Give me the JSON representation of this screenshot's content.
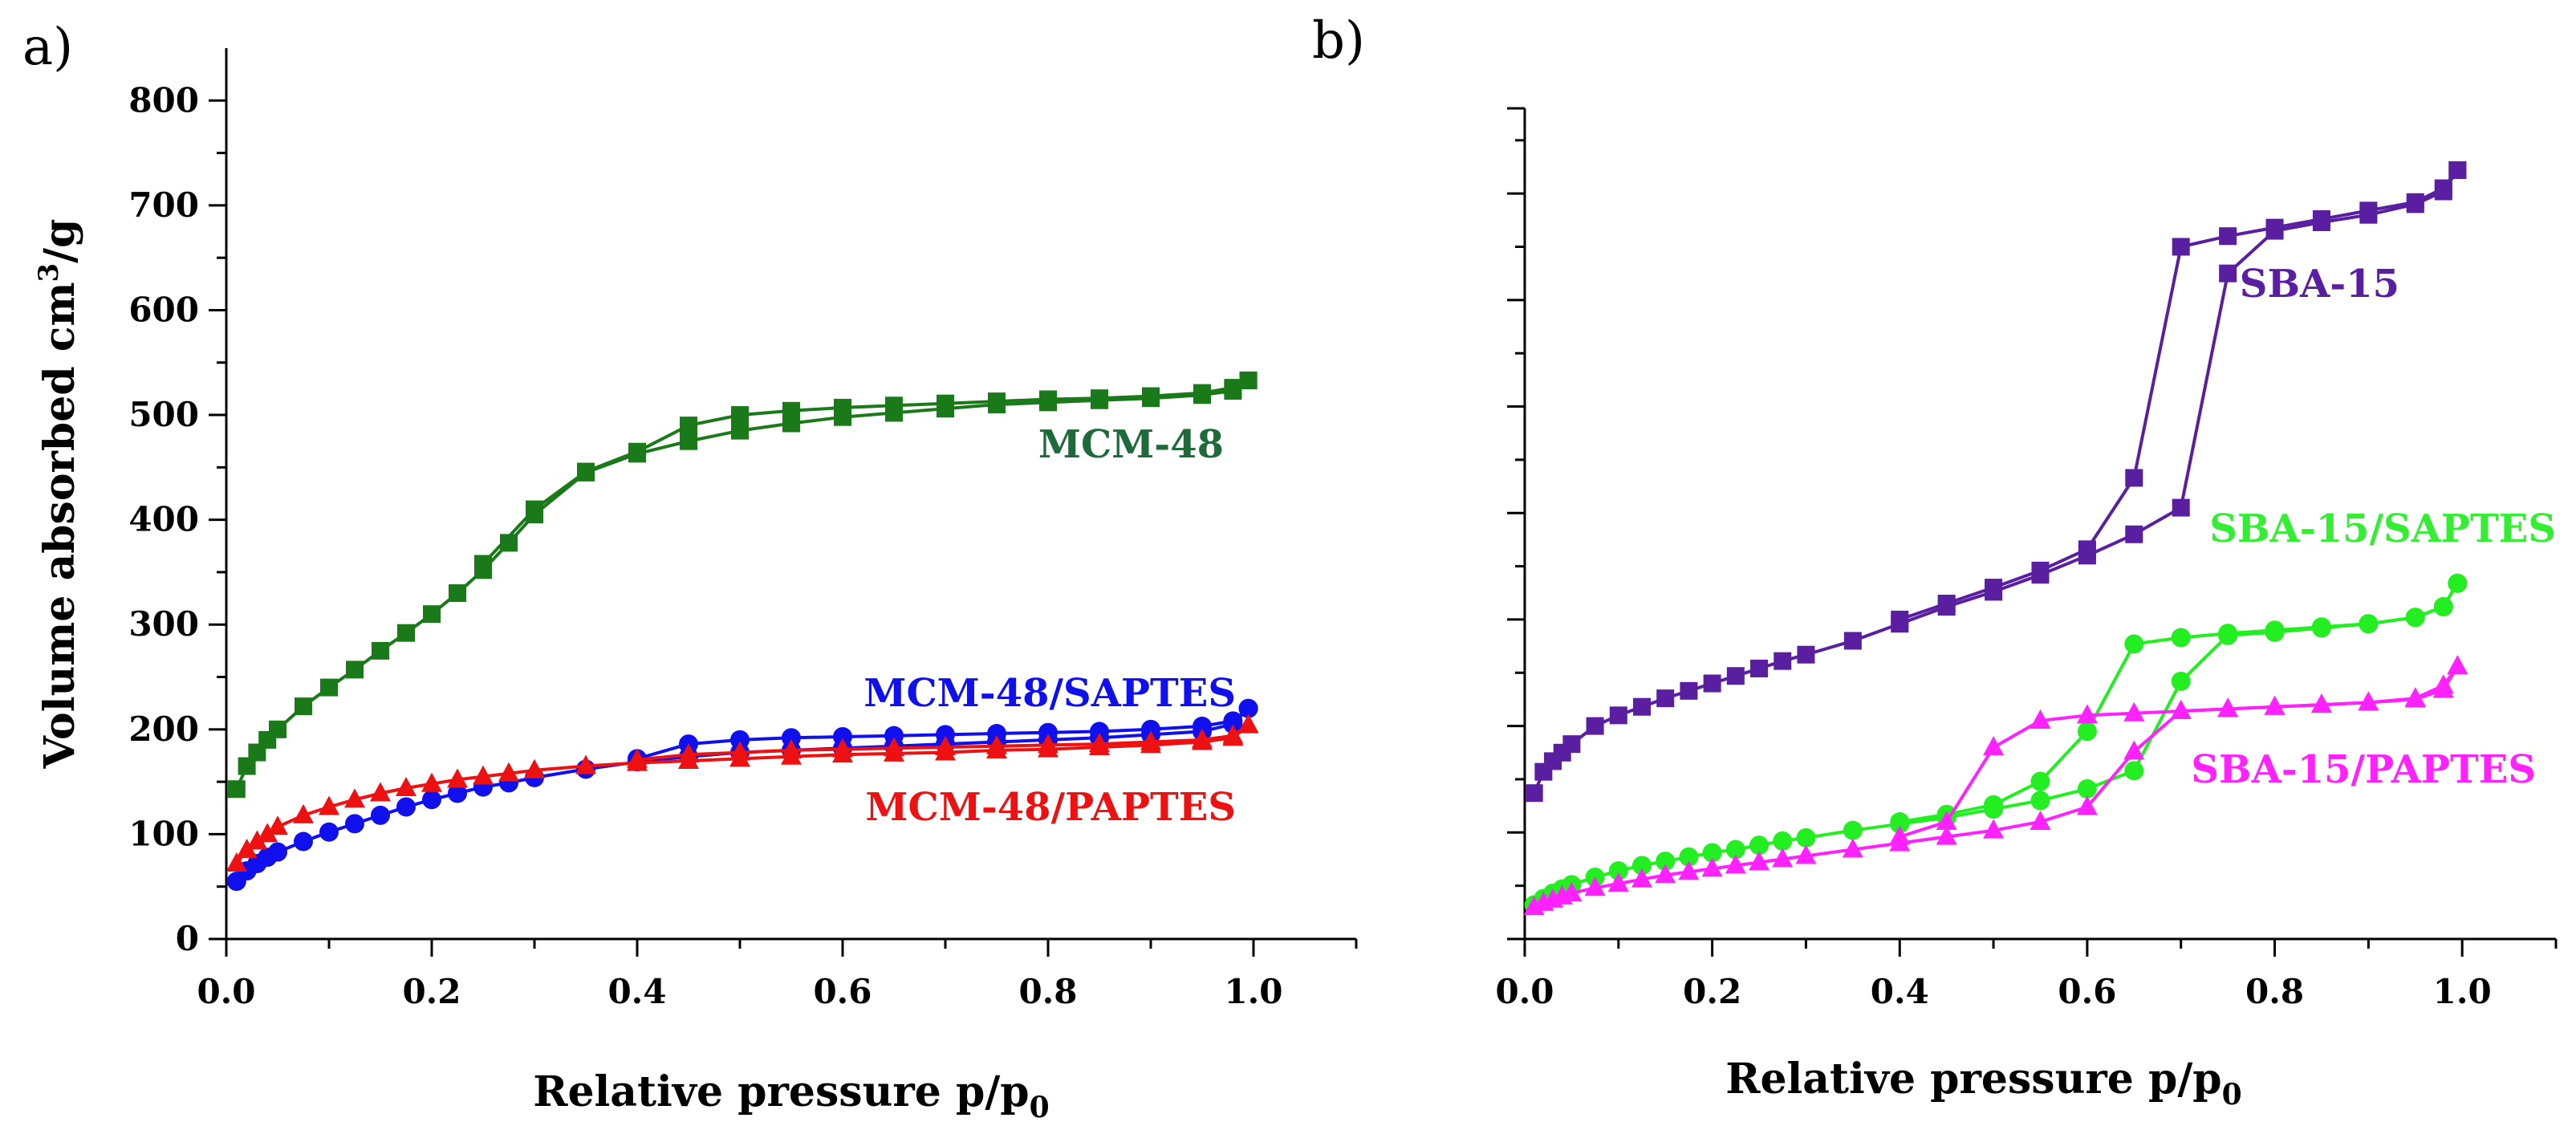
{
  "chart_data": [
    {
      "type": "line",
      "panel_label": "a)",
      "xlabel": "Relative pressure p/p",
      "xlabel_sub": "0",
      "ylabel": "Volume absorbed cm",
      "ylabel_sup": "3",
      "ylabel_suffix": "/g",
      "xlim": [
        0,
        1.1
      ],
      "ylim": [
        0,
        850
      ],
      "x_ticks": [
        "0.0",
        "0.2",
        "0.4",
        "0.6",
        "0.8",
        "1.0"
      ],
      "y_ticks": [
        "0",
        "100",
        "200",
        "300",
        "400",
        "500",
        "600",
        "700",
        "800"
      ],
      "series": [
        {
          "name": "MCM-48",
          "color": "#1a7a1a",
          "label_color": "#1d6b3a",
          "marker": "square",
          "adsorption": {
            "x": [
              0.01,
              0.02,
              0.03,
              0.04,
              0.05,
              0.075,
              0.1,
              0.125,
              0.15,
              0.175,
              0.2,
              0.225,
              0.25,
              0.275,
              0.3,
              0.35,
              0.4,
              0.45,
              0.5,
              0.55,
              0.6,
              0.65,
              0.7,
              0.75,
              0.8,
              0.85,
              0.9,
              0.95,
              0.98,
              0.995
            ],
            "y": [
              143,
              165,
              178,
              190,
              200,
              222,
              240,
              257,
              275,
              292,
              310,
              330,
              352,
              378,
              405,
              445,
              463,
              475,
              485,
              492,
              498,
              502,
              506,
              510,
              512,
              514,
              516,
              519,
              523,
              533
            ]
          },
          "desorption": {
            "x": [
              0.995,
              0.98,
              0.95,
              0.9,
              0.85,
              0.8,
              0.75,
              0.7,
              0.65,
              0.6,
              0.55,
              0.5,
              0.45,
              0.4,
              0.35,
              0.3,
              0.25
            ],
            "y": [
              533,
              526,
              521,
              518,
              516,
              515,
              513,
              511,
              509,
              507,
              504,
              500,
              490,
              465,
              446,
              410,
              358
            ]
          }
        },
        {
          "name": "MCM-48/SAPTES",
          "color": "#1010ee",
          "label_color": "#1010ee",
          "marker": "circle",
          "adsorption": {
            "x": [
              0.01,
              0.02,
              0.03,
              0.04,
              0.05,
              0.075,
              0.1,
              0.125,
              0.15,
              0.175,
              0.2,
              0.225,
              0.25,
              0.275,
              0.3,
              0.35,
              0.4,
              0.45,
              0.5,
              0.55,
              0.6,
              0.65,
              0.7,
              0.75,
              0.8,
              0.85,
              0.9,
              0.95,
              0.98,
              0.995
            ],
            "y": [
              55,
              65,
              72,
              78,
              83,
              93,
              102,
              110,
              118,
              126,
              133,
              139,
              145,
              149,
              154,
              162,
              169,
              174,
              178,
              180,
              182,
              184,
              186,
              188,
              190,
              192,
              195,
              198,
              205,
              220
            ]
          },
          "desorption": {
            "x": [
              0.995,
              0.98,
              0.95,
              0.9,
              0.85,
              0.8,
              0.75,
              0.7,
              0.65,
              0.6,
              0.55,
              0.5,
              0.45,
              0.4
            ],
            "y": [
              220,
              208,
              203,
              200,
              198,
              197,
              196,
              195,
              194,
              193,
              192,
              190,
              186,
              172
            ]
          }
        },
        {
          "name": "MCM-48/PAPTES",
          "color": "#ee1111",
          "label_color": "#ee1111",
          "marker": "triangle",
          "adsorption": {
            "x": [
              0.01,
              0.02,
              0.03,
              0.04,
              0.05,
              0.075,
              0.1,
              0.125,
              0.15,
              0.175,
              0.2,
              0.225,
              0.25,
              0.275,
              0.3,
              0.35,
              0.4,
              0.45,
              0.5,
              0.55,
              0.6,
              0.65,
              0.7,
              0.75,
              0.8,
              0.85,
              0.9,
              0.95,
              0.98,
              0.995
            ],
            "y": [
              72,
              85,
              93,
              100,
              107,
              118,
              126,
              133,
              139,
              144,
              148,
              152,
              155,
              158,
              161,
              165,
              168,
              170,
              172,
              174,
              176,
              177,
              178,
              180,
              181,
              183,
              185,
              188,
              192,
              204
            ]
          },
          "desorption": {
            "x": [
              0.995,
              0.98,
              0.95,
              0.9,
              0.85,
              0.8,
              0.75,
              0.7,
              0.65,
              0.6,
              0.55,
              0.5,
              0.45,
              0.4
            ],
            "y": [
              204,
              194,
              190,
              188,
              186,
              185,
              184,
              183,
              182,
              181,
              180,
              178,
              176,
              171
            ]
          }
        }
      ]
    },
    {
      "type": "line",
      "panel_label": "b)",
      "xlabel": "Relative pressure p/p",
      "xlabel_sub": "0",
      "xlim": [
        0,
        1.1
      ],
      "ylim": [
        0,
        780
      ],
      "x_ticks": [
        "0.0",
        "0.2",
        "0.4",
        "0.6",
        "0.8",
        "1.0"
      ],
      "y_ticks": [
        "",
        "",
        "",
        "",
        "",
        "",
        "",
        "",
        ""
      ],
      "series": [
        {
          "name": "SBA-15",
          "color": "#5a1fa0",
          "label_color": "#5a1fa0",
          "marker": "square",
          "adsorption": {
            "x": [
              0.01,
              0.02,
              0.03,
              0.04,
              0.05,
              0.075,
              0.1,
              0.125,
              0.15,
              0.175,
              0.2,
              0.225,
              0.25,
              0.275,
              0.3,
              0.35,
              0.4,
              0.45,
              0.5,
              0.55,
              0.6,
              0.65,
              0.7,
              0.75,
              0.8,
              0.85,
              0.9,
              0.95,
              0.98,
              0.995
            ],
            "y": [
              137,
              157,
              167,
              175,
              183,
              200,
              210,
              218,
              226,
              233,
              240,
              247,
              254,
              261,
              267,
              280,
              296,
              312,
              326,
              342,
              360,
              380,
              405,
              625,
              665,
              673,
              680,
              690,
              702,
              722
            ]
          },
          "desorption": {
            "x": [
              0.995,
              0.98,
              0.95,
              0.9,
              0.85,
              0.8,
              0.75,
              0.7,
              0.65,
              0.6,
              0.55,
              0.5,
              0.45,
              0.4
            ],
            "y": [
              722,
              705,
              692,
              684,
              676,
              668,
              660,
              650,
              433,
              366,
              346,
              330,
              315,
              300
            ]
          }
        },
        {
          "name": "SBA-15/SAPTES",
          "color": "#22ee22",
          "label_color": "#33ee33",
          "marker": "circle",
          "adsorption": {
            "x": [
              0.01,
              0.02,
              0.03,
              0.04,
              0.05,
              0.075,
              0.1,
              0.125,
              0.15,
              0.175,
              0.2,
              0.225,
              0.25,
              0.275,
              0.3,
              0.35,
              0.4,
              0.45,
              0.5,
              0.55,
              0.6,
              0.65,
              0.7,
              0.75,
              0.8,
              0.85,
              0.9,
              0.95,
              0.98,
              0.995
            ],
            "y": [
              32,
              38,
              43,
              47,
              51,
              58,
              64,
              69,
              73,
              77,
              81,
              84,
              88,
              92,
              95,
              102,
              108,
              114,
              122,
              130,
              141,
              158,
              242,
              285,
              288,
              292,
              296,
              302,
              312,
              334
            ]
          },
          "desorption": {
            "x": [
              0.995,
              0.98,
              0.95,
              0.9,
              0.85,
              0.8,
              0.75,
              0.7,
              0.65,
              0.6,
              0.55,
              0.5,
              0.45,
              0.4
            ],
            "y": [
              334,
              312,
              302,
              296,
              293,
              290,
              287,
              283,
              277,
              195,
              148,
              126,
              117,
              110
            ]
          }
        },
        {
          "name": "SBA-15/PAPTES",
          "color": "#ff22ff",
          "label_color": "#ff22ff",
          "marker": "triangle",
          "adsorption": {
            "x": [
              0.01,
              0.02,
              0.03,
              0.04,
              0.05,
              0.075,
              0.1,
              0.125,
              0.15,
              0.175,
              0.2,
              0.225,
              0.25,
              0.275,
              0.3,
              0.35,
              0.4,
              0.45,
              0.5,
              0.55,
              0.6,
              0.65,
              0.7,
              0.75,
              0.8,
              0.85,
              0.9,
              0.95,
              0.98,
              0.995
            ],
            "y": [
              30,
              34,
              37,
              40,
              43,
              48,
              52,
              56,
              60,
              63,
              66,
              69,
              72,
              75,
              78,
              84,
              90,
              96,
              102,
              110,
              124,
              176,
              214,
              216,
              218,
              220,
              222,
              225,
              234,
              256
            ]
          },
          "desorption": {
            "x": [
              0.995,
              0.98,
              0.95,
              0.9,
              0.85,
              0.8,
              0.75,
              0.7,
              0.65,
              0.6,
              0.55,
              0.5,
              0.45,
              0.4
            ],
            "y": [
              256,
              238,
              226,
              222,
              220,
              218,
              216,
              214,
              212,
              210,
              205,
              180,
              110,
              96
            ]
          }
        }
      ]
    }
  ]
}
